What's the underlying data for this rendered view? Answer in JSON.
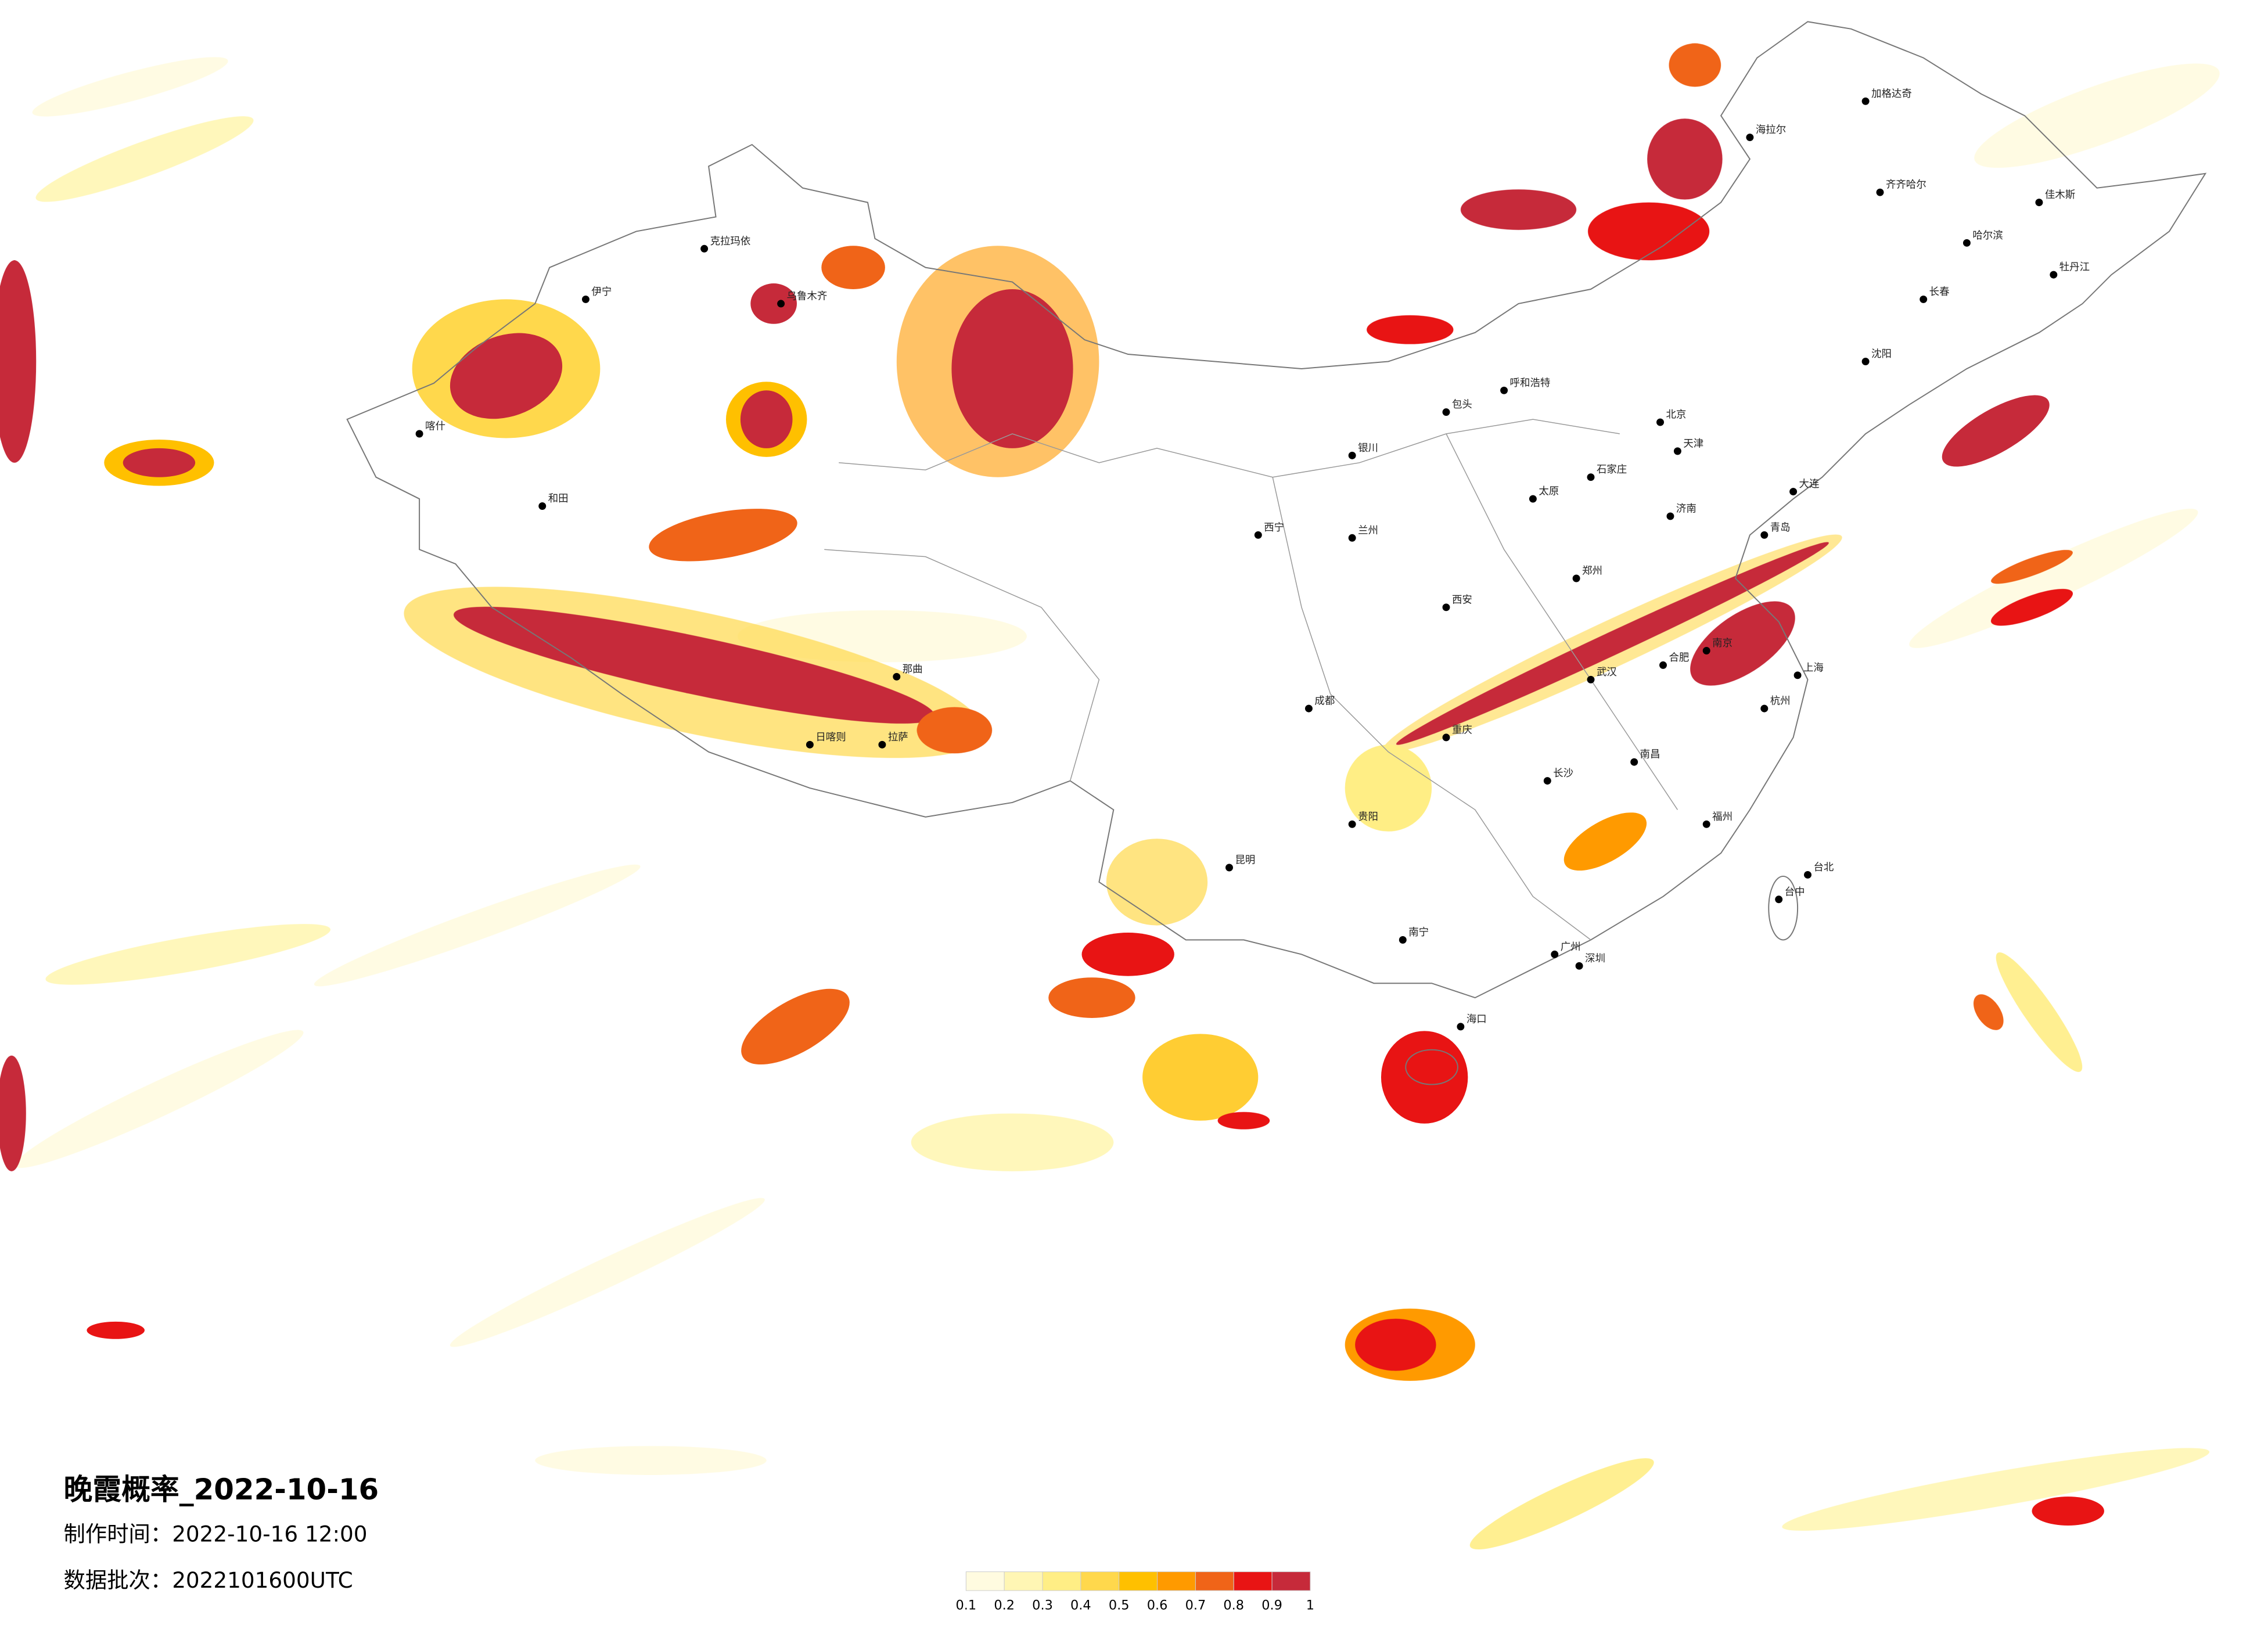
{
  "title": "晚霞概率_2022-10-16",
  "production_time": "制作时间：2022-10-16 12:00",
  "data_batch": "数据批次：2022101600UTC",
  "legend": {
    "colors": [
      "#fffbe0",
      "#fff6b4",
      "#ffee85",
      "#ffd84c",
      "#ffc000",
      "#ff9a00",
      "#f06418",
      "#e81414",
      "#c62a3a"
    ],
    "ticks": [
      0.1,
      0.2,
      0.3,
      0.4,
      0.5,
      0.6,
      0.7,
      0.8,
      0.9,
      1
    ]
  },
  "cities": [
    "北京",
    "天津",
    "上海",
    "广州",
    "深圳",
    "重庆",
    "成都",
    "武汉",
    "西安",
    "兰州",
    "拉萨",
    "乌鲁木齐",
    "哈尔滨",
    "长春",
    "沈阳",
    "呼和浩特",
    "昆明",
    "南宁",
    "海口",
    "台北",
    "台中",
    "南昌",
    "长沙",
    "贵阳",
    "福州",
    "郑州",
    "济南",
    "石家庄",
    "太原",
    "银川",
    "西宁",
    "喀什",
    "和田",
    "伊宁",
    "克拉玛依",
    "那曲",
    "日喀则",
    "包头",
    "大连",
    "青岛",
    "杭州",
    "南京",
    "合肥",
    "齐齐哈尔",
    "牡丹江",
    "佳木斯",
    "加格达奇",
    "海拉尔"
  ]
}
